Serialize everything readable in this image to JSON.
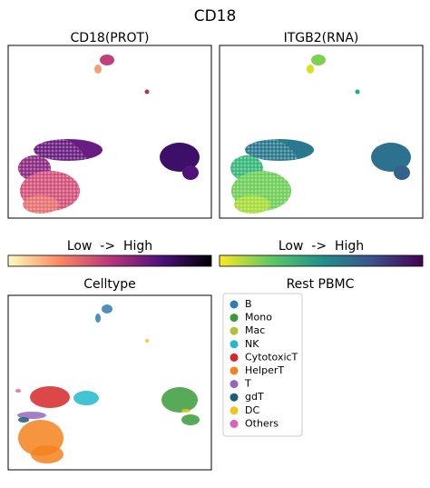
{
  "title": "CD18",
  "panels": [
    {
      "title": "CD18(PROT)"
    },
    {
      "title": "ITGB2(RNA)"
    },
    {
      "title": "Celltype"
    }
  ],
  "colorbars": [
    {
      "label": "Low  ->  High"
    },
    {
      "label": "Low  ->  High"
    }
  ],
  "legend": {
    "title": "Rest PBMC",
    "items": [
      {
        "name": "B",
        "color": "#2f7bb6"
      },
      {
        "name": "Mono",
        "color": "#3a9b3a"
      },
      {
        "name": "Mac",
        "color": "#b8bd36"
      },
      {
        "name": "NK",
        "color": "#22b8cf"
      },
      {
        "name": "CytotoxicT",
        "color": "#d62728"
      },
      {
        "name": "HelperT",
        "color": "#f5821f"
      },
      {
        "name": "T",
        "color": "#9467bd"
      },
      {
        "name": "gdT",
        "color": "#1b5e78"
      },
      {
        "name": "DC",
        "color": "#f2c318"
      },
      {
        "name": "Others",
        "color": "#e05fb8"
      }
    ]
  }
}
